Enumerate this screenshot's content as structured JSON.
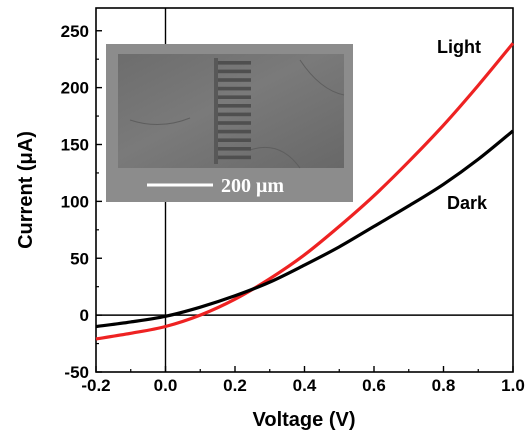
{
  "chart_data": {
    "type": "line",
    "title": "",
    "xlabel": "Voltage (V)",
    "ylabel": "Current (μA)",
    "xlim": [
      -0.2,
      1.0
    ],
    "ylim": [
      -50,
      270
    ],
    "x_ticks": [
      -0.2,
      0.0,
      0.2,
      0.4,
      0.6,
      0.8,
      1.0
    ],
    "x_tick_labels": [
      "-0.2",
      "0.0",
      "0.2",
      "0.4",
      "0.6",
      "0.8",
      "1.0"
    ],
    "y_ticks": [
      -50,
      0,
      50,
      100,
      150,
      200,
      250
    ],
    "y_tick_labels": [
      "-50",
      "0",
      "50",
      "100",
      "150",
      "200",
      "250"
    ],
    "grid": false,
    "zero_lines": true,
    "series": [
      {
        "name": "Light",
        "color": "#ee2222",
        "x": [
          -0.2,
          -0.1,
          0.0,
          0.1,
          0.2,
          0.3,
          0.4,
          0.5,
          0.6,
          0.7,
          0.8,
          0.9,
          1.0
        ],
        "y": [
          -21,
          -16,
          -10,
          0,
          14,
          32,
          53,
          78,
          105,
          135,
          167,
          202,
          239
        ]
      },
      {
        "name": "Dark",
        "color": "#000000",
        "x": [
          -0.2,
          -0.1,
          0.0,
          0.1,
          0.2,
          0.3,
          0.4,
          0.5,
          0.6,
          0.7,
          0.8,
          0.9,
          1.0
        ],
        "y": [
          -10,
          -6,
          -1,
          7,
          17,
          29,
          44,
          60,
          78,
          96,
          115,
          137,
          162
        ]
      }
    ]
  },
  "inset": {
    "description": "SEM micrograph of interdigitated electrodes",
    "scale_bar_label": "200 μm",
    "finger_count": 12
  }
}
